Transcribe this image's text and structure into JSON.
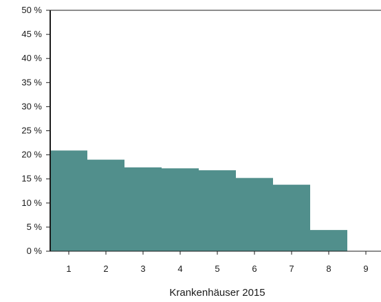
{
  "chart_data": {
    "type": "bar",
    "title": "",
    "xlabel": "Krankenhäuser 2015",
    "ylabel": "",
    "categories": [
      "1",
      "2",
      "3",
      "4",
      "5",
      "6",
      "7",
      "8",
      "9"
    ],
    "values": [
      20.9,
      19.0,
      17.4,
      17.2,
      16.8,
      15.2,
      13.8,
      4.4,
      0
    ],
    "ylim": [
      0,
      50
    ],
    "yticks": [
      "0 %",
      "5 %",
      "10 %",
      "15 %",
      "20 %",
      "25 %",
      "30 %",
      "35 %",
      "40 %",
      "45 %",
      "50 %"
    ],
    "grid": false,
    "legend": "none",
    "bar_color": "#518f8c",
    "axis_color": "#1a1a1a"
  }
}
